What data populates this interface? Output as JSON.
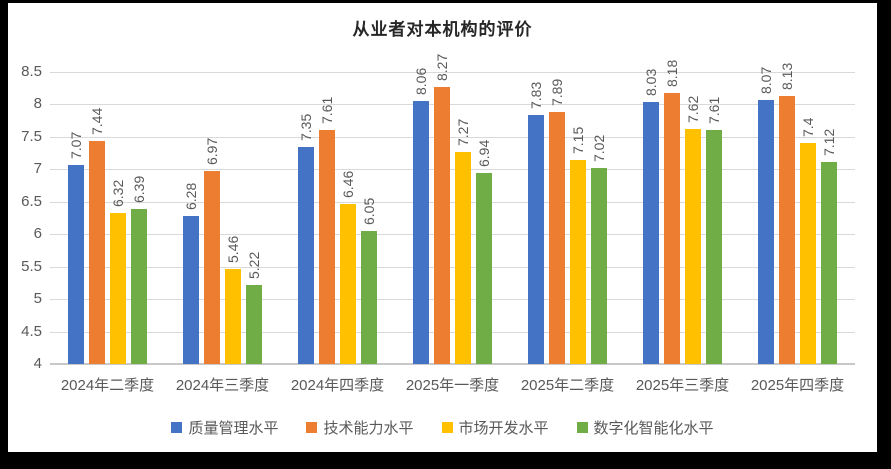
{
  "window": {
    "frame_color": "#000000",
    "background_color": "#FFFFFF"
  },
  "chart_data": {
    "type": "bar",
    "title": "从业者对本机构的评价",
    "categories": [
      "2024年二季度",
      "2024年三季度",
      "2024年四季度",
      "2025年一季度",
      "2025年二季度",
      "2025年三季度",
      "2025年四季度"
    ],
    "series": [
      {
        "name": "质量管理水平",
        "color": "#4472C4",
        "values": [
          7.07,
          6.28,
          7.35,
          8.06,
          7.83,
          8.03,
          8.07
        ]
      },
      {
        "name": "技术能力水平",
        "color": "#ED7D31",
        "values": [
          7.44,
          6.97,
          7.61,
          8.27,
          7.89,
          8.18,
          8.13
        ]
      },
      {
        "name": "市场开发水平",
        "color": "#FFC000",
        "values": [
          6.32,
          5.46,
          6.46,
          7.27,
          7.15,
          7.62,
          7.4
        ]
      },
      {
        "name": "数字化智能化水平",
        "color": "#70AD47",
        "values": [
          6.39,
          5.22,
          6.05,
          6.94,
          7.02,
          7.61,
          7.12
        ]
      }
    ],
    "y_axis": {
      "min": 4,
      "max": 8.5,
      "step": 0.5,
      "tick_labels": [
        "4",
        "4.5",
        "5",
        "5.5",
        "6",
        "6.5",
        "7",
        "7.5",
        "8",
        "8.5"
      ]
    },
    "grid": true,
    "data_labels": true,
    "data_label_rotation": "vertical-bottom-to-top",
    "legend_position": "bottom",
    "colors": {
      "text": "#595959",
      "gridline": "#D9D9D9",
      "axis_line": "#C8C8C8",
      "title": "#262626"
    }
  }
}
